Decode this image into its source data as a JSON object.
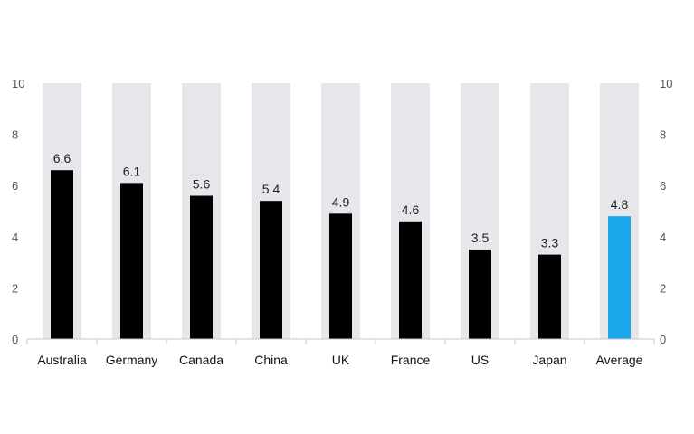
{
  "chart_data": {
    "type": "bar",
    "categories": [
      "Australia",
      "Germany",
      "Canada",
      "China",
      "UK",
      "France",
      "US",
      "Japan",
      "Average"
    ],
    "values": [
      6.6,
      6.1,
      5.6,
      5.4,
      4.9,
      4.6,
      3.5,
      3.3,
      4.8
    ],
    "data_labels": [
      "6.6",
      "6.1",
      "5.6",
      "5.4",
      "4.9",
      "4.6",
      "3.5",
      "3.3",
      "4.8"
    ],
    "ylim": [
      0,
      10
    ],
    "yticks": [
      "0",
      "2",
      "4",
      "6",
      "8",
      "10"
    ],
    "ytick_values": [
      0,
      2,
      4,
      6,
      8,
      10
    ],
    "secondary_y_axis": true,
    "grid": false,
    "background_columns": true,
    "legend": "none",
    "colors": {
      "bar": "#000000",
      "highlight": "#1aa7ec",
      "column_bg": "#e6e7ea",
      "axis": "#c8c8c8"
    },
    "highlight_category": "Average"
  }
}
